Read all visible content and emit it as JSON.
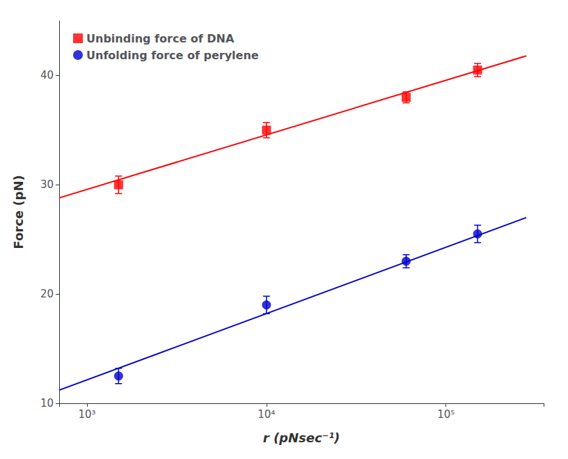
{
  "chart_data": {
    "type": "scatter",
    "xlabel": "r (pNsec⁻¹)",
    "ylabel": "Force (pN)",
    "log": "x",
    "xlim": [
      700,
      350000
    ],
    "xticks": [
      {
        "value": 1000,
        "label": "10³"
      },
      {
        "value": 10000,
        "label": "10⁴"
      },
      {
        "value": 100000,
        "label": "10⁵"
      }
    ],
    "ylim": [
      10,
      45
    ],
    "yticks": [
      10,
      20,
      30,
      40
    ],
    "grid": false,
    "legend": "upper left",
    "series": [
      {
        "type": "line",
        "color": "#FF0000",
        "x": [
          700,
          280000
        ],
        "values": [
          28.8,
          41.8
        ]
      },
      {
        "type": "line",
        "color": "#0000CC",
        "x": [
          700,
          280000
        ],
        "values": [
          11.2,
          27.0
        ]
      },
      {
        "type": "scatter",
        "name": "Unbinding force of DNA",
        "color": "#FF0000",
        "marker": "square",
        "x": [
          1500,
          10000,
          60000,
          150000
        ],
        "values": [
          30.0,
          35.0,
          38.0,
          40.5
        ],
        "yerr": [
          0.8,
          0.7,
          0.5,
          0.6
        ]
      },
      {
        "type": "scatter",
        "name": "Unfolding force of perylene",
        "color": "#0000CC",
        "marker": "circle",
        "x": [
          1500,
          10000,
          60000,
          150000
        ],
        "values": [
          12.5,
          19.0,
          23.0,
          25.5
        ],
        "yerr": [
          0.7,
          0.8,
          0.6,
          0.8
        ]
      }
    ]
  }
}
